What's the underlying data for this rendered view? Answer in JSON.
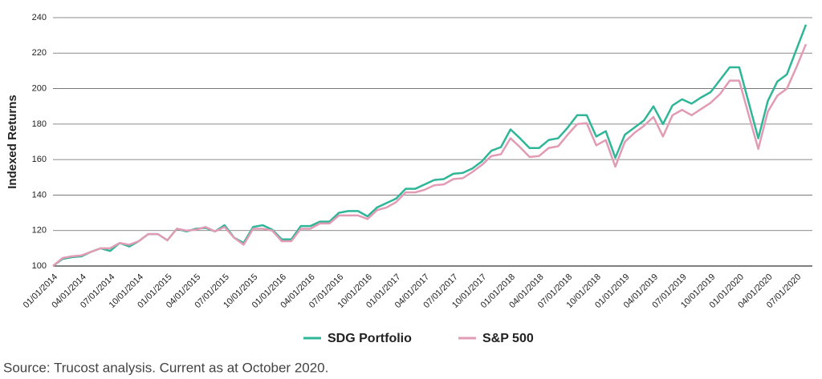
{
  "chart_data": {
    "type": "line",
    "y_label": "Indexed Returns",
    "source": "Source: Trucost analysis. Current as at October 2020.",
    "categories": [
      "01/01/2014",
      null,
      null,
      "04/01/2014",
      null,
      null,
      "07/01/2014",
      null,
      null,
      "10/01/2014",
      null,
      null,
      "01/01/2015",
      null,
      null,
      "04/01/2015",
      null,
      null,
      "07/01/2015",
      null,
      null,
      "10/01/2015",
      null,
      null,
      "01/01/2016",
      null,
      null,
      "04/01/2016",
      null,
      null,
      "07/01/2016",
      null,
      null,
      "10/01/2016",
      null,
      null,
      "01/01/2017",
      null,
      null,
      "04/01/2017",
      null,
      null,
      "07/01/2017",
      null,
      null,
      "10/01/2017",
      null,
      null,
      "01/01/2018",
      null,
      null,
      "04/01/2018",
      null,
      null,
      "07/01/2018",
      null,
      null,
      "10/01/2018",
      null,
      null,
      "01/01/2019",
      null,
      null,
      "04/01/2019",
      null,
      null,
      "07/01/2019",
      null,
      null,
      "10/01/2019",
      null,
      null,
      "01/01/2020",
      null,
      null,
      "04/01/2020",
      null,
      null,
      "07/01/2020",
      null
    ],
    "series": [
      {
        "name": "SDG Portfolio",
        "color": "#2fb597",
        "values": [
          100,
          104,
          105,
          105.5,
          108,
          110,
          108.5,
          113,
          111,
          114,
          118,
          118,
          114.5,
          121,
          119.5,
          121,
          121.5,
          119.5,
          123,
          116,
          113,
          122,
          123,
          120.5,
          115,
          115,
          122.5,
          122.5,
          125,
          125,
          130,
          131,
          131,
          128,
          133,
          135.5,
          138,
          143.5,
          143.5,
          146,
          148.5,
          149,
          152,
          152.5,
          155,
          159,
          165,
          167,
          177,
          172,
          166.5,
          166.5,
          171,
          172,
          178,
          185,
          185,
          173,
          176,
          161,
          174,
          178,
          182,
          190,
          180,
          190.5,
          194,
          191.5,
          195,
          198,
          205,
          212,
          212,
          192,
          172,
          193,
          204,
          208,
          222,
          236
        ]
      },
      {
        "name": "S&P 500",
        "color": "#e29bb4",
        "values": [
          100,
          104.5,
          105.5,
          106,
          108,
          110,
          110,
          113,
          112,
          114,
          118,
          118,
          114.5,
          121,
          120,
          120.5,
          122,
          119.5,
          122,
          116,
          112,
          121,
          121,
          120,
          114,
          114,
          121,
          121,
          124,
          124,
          128.5,
          128.5,
          128.5,
          126.5,
          131.5,
          133,
          136,
          141.5,
          141.5,
          143,
          145.5,
          146,
          149,
          149.5,
          153,
          157,
          162,
          163,
          172,
          167,
          161.5,
          162,
          166.5,
          167.5,
          174,
          180,
          180.5,
          168,
          171,
          156,
          170,
          175,
          179,
          184,
          173,
          185,
          188,
          185,
          188.5,
          192,
          197,
          204.5,
          204.5,
          185,
          166,
          187,
          196,
          200,
          212,
          225
        ]
      }
    ],
    "ylim": [
      100,
      240
    ],
    "yticks": [
      100,
      120,
      140,
      160,
      180,
      200,
      220,
      240
    ],
    "grid": true,
    "legend": "bottom"
  }
}
